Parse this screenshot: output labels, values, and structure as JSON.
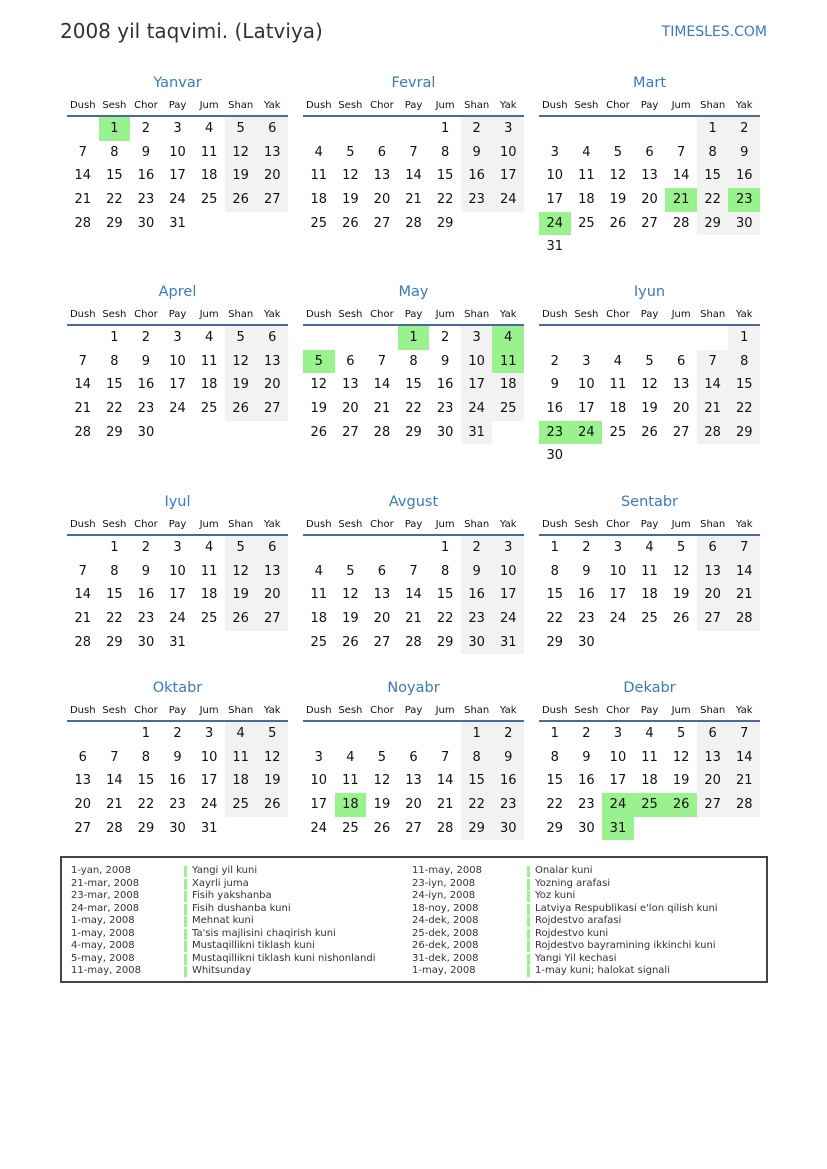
{
  "header": {
    "title": "2008 yil taqvimi. (Latviya)",
    "site": "TIMESLES.COM"
  },
  "weekdays": [
    "Dush",
    "Sesh",
    "Chor",
    "Pay",
    "Jum",
    "Shan",
    "Yak"
  ],
  "colors": {
    "accent": "#3a7abf",
    "holiday": "#99f28d",
    "weekend": "#f2f2f2"
  },
  "months": [
    {
      "name": "Yanvar",
      "weeks": [
        [
          null,
          1,
          2,
          3,
          4,
          5,
          6
        ],
        [
          7,
          8,
          9,
          10,
          11,
          12,
          13
        ],
        [
          14,
          15,
          16,
          17,
          18,
          19,
          20
        ],
        [
          21,
          22,
          23,
          24,
          25,
          26,
          27
        ],
        [
          28,
          29,
          30,
          31
        ]
      ],
      "highlighted": [
        1
      ]
    },
    {
      "name": "Fevral",
      "weeks": [
        [
          null,
          null,
          null,
          null,
          1,
          2,
          3
        ],
        [
          4,
          5,
          6,
          7,
          8,
          9,
          10
        ],
        [
          11,
          12,
          13,
          14,
          15,
          16,
          17
        ],
        [
          18,
          19,
          20,
          21,
          22,
          23,
          24
        ],
        [
          25,
          26,
          27,
          28,
          29
        ]
      ],
      "highlighted": []
    },
    {
      "name": "Mart",
      "weeks": [
        [
          null,
          null,
          null,
          null,
          null,
          1,
          2
        ],
        [
          3,
          4,
          5,
          6,
          7,
          8,
          9
        ],
        [
          10,
          11,
          12,
          13,
          14,
          15,
          16
        ],
        [
          17,
          18,
          19,
          20,
          21,
          22,
          23
        ],
        [
          24,
          25,
          26,
          27,
          28,
          29,
          30
        ],
        [
          31
        ]
      ],
      "highlighted": [
        21,
        23,
        24
      ]
    },
    {
      "name": "Aprel",
      "weeks": [
        [
          null,
          1,
          2,
          3,
          4,
          5,
          6
        ],
        [
          7,
          8,
          9,
          10,
          11,
          12,
          13
        ],
        [
          14,
          15,
          16,
          17,
          18,
          19,
          20
        ],
        [
          21,
          22,
          23,
          24,
          25,
          26,
          27
        ],
        [
          28,
          29,
          30
        ]
      ],
      "highlighted": []
    },
    {
      "name": "May",
      "weeks": [
        [
          null,
          null,
          null,
          1,
          2,
          3,
          4
        ],
        [
          5,
          6,
          7,
          8,
          9,
          10,
          11
        ],
        [
          12,
          13,
          14,
          15,
          16,
          17,
          18
        ],
        [
          19,
          20,
          21,
          22,
          23,
          24,
          25
        ],
        [
          26,
          27,
          28,
          29,
          30,
          31
        ]
      ],
      "highlighted": [
        1,
        4,
        5,
        11
      ]
    },
    {
      "name": "Iyun",
      "weeks": [
        [
          null,
          null,
          null,
          null,
          null,
          null,
          1
        ],
        [
          2,
          3,
          4,
          5,
          6,
          7,
          8
        ],
        [
          9,
          10,
          11,
          12,
          13,
          14,
          15
        ],
        [
          16,
          17,
          18,
          19,
          20,
          21,
          22
        ],
        [
          23,
          24,
          25,
          26,
          27,
          28,
          29
        ],
        [
          30
        ]
      ],
      "highlighted": [
        23,
        24
      ]
    },
    {
      "name": "Iyul",
      "weeks": [
        [
          null,
          1,
          2,
          3,
          4,
          5,
          6
        ],
        [
          7,
          8,
          9,
          10,
          11,
          12,
          13
        ],
        [
          14,
          15,
          16,
          17,
          18,
          19,
          20
        ],
        [
          21,
          22,
          23,
          24,
          25,
          26,
          27
        ],
        [
          28,
          29,
          30,
          31
        ]
      ],
      "highlighted": []
    },
    {
      "name": "Avgust",
      "weeks": [
        [
          null,
          null,
          null,
          null,
          1,
          2,
          3
        ],
        [
          4,
          5,
          6,
          7,
          8,
          9,
          10
        ],
        [
          11,
          12,
          13,
          14,
          15,
          16,
          17
        ],
        [
          18,
          19,
          20,
          21,
          22,
          23,
          24
        ],
        [
          25,
          26,
          27,
          28,
          29,
          30,
          31
        ]
      ],
      "highlighted": []
    },
    {
      "name": "Sentabr",
      "weeks": [
        [
          1,
          2,
          3,
          4,
          5,
          6,
          7
        ],
        [
          8,
          9,
          10,
          11,
          12,
          13,
          14
        ],
        [
          15,
          16,
          17,
          18,
          19,
          20,
          21
        ],
        [
          22,
          23,
          24,
          25,
          26,
          27,
          28
        ],
        [
          29,
          30
        ]
      ],
      "highlighted": []
    },
    {
      "name": "Oktabr",
      "weeks": [
        [
          null,
          null,
          1,
          2,
          3,
          4,
          5
        ],
        [
          6,
          7,
          8,
          9,
          10,
          11,
          12
        ],
        [
          13,
          14,
          15,
          16,
          17,
          18,
          19
        ],
        [
          20,
          21,
          22,
          23,
          24,
          25,
          26
        ],
        [
          27,
          28,
          29,
          30,
          31
        ]
      ],
      "highlighted": []
    },
    {
      "name": "Noyabr",
      "weeks": [
        [
          null,
          null,
          null,
          null,
          null,
          1,
          2
        ],
        [
          3,
          4,
          5,
          6,
          7,
          8,
          9
        ],
        [
          10,
          11,
          12,
          13,
          14,
          15,
          16
        ],
        [
          17,
          18,
          19,
          20,
          21,
          22,
          23
        ],
        [
          24,
          25,
          26,
          27,
          28,
          29,
          30
        ]
      ],
      "highlighted": [
        18
      ]
    },
    {
      "name": "Dekabr",
      "weeks": [
        [
          1,
          2,
          3,
          4,
          5,
          6,
          7
        ],
        [
          8,
          9,
          10,
          11,
          12,
          13,
          14
        ],
        [
          15,
          16,
          17,
          18,
          19,
          20,
          21
        ],
        [
          22,
          23,
          24,
          25,
          26,
          27,
          28
        ],
        [
          29,
          30,
          31
        ]
      ],
      "highlighted": [
        24,
        25,
        26,
        31
      ]
    }
  ],
  "holidays": [
    {
      "date": "1-yan, 2008",
      "name": "Yangi yil kuni"
    },
    {
      "date": "21-mar, 2008",
      "name": "Xayrli juma"
    },
    {
      "date": "23-mar, 2008",
      "name": "Fisih yakshanba"
    },
    {
      "date": "24-mar, 2008",
      "name": "Fisih dushanba kuni"
    },
    {
      "date": "1-may, 2008",
      "name": "Mehnat kuni"
    },
    {
      "date": "1-may, 2008",
      "name": "Ta'sis majlisini chaqirish kuni"
    },
    {
      "date": "4-may, 2008",
      "name": "Mustaqillikni tiklash kuni"
    },
    {
      "date": "5-may, 2008",
      "name": "Mustaqillikni tiklash kuni nishonlandi"
    },
    {
      "date": "11-may, 2008",
      "name": "Whitsunday"
    },
    {
      "date": "11-may, 2008",
      "name": "Onalar kuni"
    },
    {
      "date": "23-iyn, 2008",
      "name": "Yozning arafasi"
    },
    {
      "date": "24-iyn, 2008",
      "name": "Yoz kuni"
    },
    {
      "date": "18-noy, 2008",
      "name": "Latviya Respublikasi e'lon qilish kuni"
    },
    {
      "date": "24-dek, 2008",
      "name": "Rojdestvo arafasi"
    },
    {
      "date": "25-dek, 2008",
      "name": "Rojdestvo kuni"
    },
    {
      "date": "26-dek, 2008",
      "name": "Rojdestvo bayramining ikkinchi kuni"
    },
    {
      "date": "31-dek, 2008",
      "name": "Yangi Yil kechasi"
    },
    {
      "date": "1-may, 2008",
      "name": "1-may kuni; halokat signali"
    }
  ]
}
